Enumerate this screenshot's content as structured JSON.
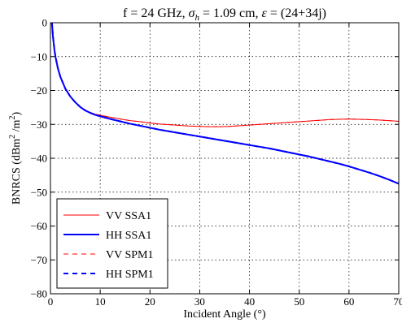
{
  "chart_data": {
    "type": "line",
    "title_parts": {
      "freq": "f = 24 GHz, ",
      "sigma": "σ",
      "sigma_sub": "h",
      "sigma_val": " = 1.09 cm, ",
      "eps": "ε",
      "eps_val": " = (24+34j)"
    },
    "xlabel": "Incident Angle (°)",
    "ylabel_parts": {
      "pre": "BNRCS (dBm",
      "sup1": "2",
      "mid": " /m",
      "sup2": "2",
      "post": ")"
    },
    "xlim": [
      0,
      70
    ],
    "ylim": [
      -80,
      0
    ],
    "xticks": [
      0,
      10,
      20,
      30,
      40,
      50,
      60,
      70
    ],
    "yticks": [
      0,
      -10,
      -20,
      -30,
      -40,
      -50,
      -60,
      -70,
      -80
    ],
    "grid": true,
    "legend_position": "lower-left",
    "series": [
      {
        "name": "VV SSA1",
        "color": "#ff0000",
        "style": "solid",
        "width": 1,
        "x": [
          0.3,
          0.5,
          0.8,
          1,
          1.5,
          2,
          3,
          4,
          5,
          6,
          7,
          8,
          9,
          10,
          12,
          14,
          16,
          18,
          20,
          22,
          24,
          26,
          28,
          30,
          32,
          34,
          36,
          38,
          40,
          42,
          44,
          46,
          48,
          50,
          52,
          54,
          56,
          58,
          60,
          62,
          64,
          66,
          68,
          70
        ],
        "y": [
          0,
          -4,
          -8,
          -10,
          -13.5,
          -16,
          -19.5,
          -21.8,
          -23.5,
          -24.8,
          -25.8,
          -26.5,
          -27,
          -27.3,
          -27.9,
          -28.4,
          -28.9,
          -29.2,
          -29.6,
          -29.9,
          -30.1,
          -30.3,
          -30.5,
          -30.6,
          -30.7,
          -30.7,
          -30.6,
          -30.4,
          -30.2,
          -30,
          -29.8,
          -29.6,
          -29.4,
          -29.2,
          -29,
          -28.8,
          -28.6,
          -28.5,
          -28.4,
          -28.5,
          -28.6,
          -28.7,
          -28.9,
          -29.1
        ]
      },
      {
        "name": "HH SSA1",
        "color": "#0000ff",
        "style": "solid",
        "width": 2,
        "x": [
          0.3,
          0.5,
          0.8,
          1,
          1.5,
          2,
          3,
          4,
          5,
          6,
          7,
          8,
          9,
          10,
          12,
          14,
          16,
          18,
          20,
          22,
          24,
          26,
          28,
          30,
          32,
          34,
          36,
          38,
          40,
          42,
          44,
          46,
          48,
          50,
          52,
          54,
          56,
          58,
          60,
          62,
          64,
          66,
          68,
          70
        ],
        "y": [
          0,
          -4,
          -8,
          -10,
          -13.5,
          -16,
          -19.5,
          -21.8,
          -23.5,
          -24.9,
          -25.9,
          -26.6,
          -27.2,
          -27.6,
          -28.4,
          -29.1,
          -29.8,
          -30.4,
          -31,
          -31.6,
          -32.1,
          -32.6,
          -33.1,
          -33.6,
          -34.1,
          -34.6,
          -35.1,
          -35.6,
          -36.1,
          -36.6,
          -37.1,
          -37.7,
          -38.3,
          -38.9,
          -39.5,
          -40.2,
          -40.9,
          -41.6,
          -42.4,
          -43.3,
          -44.2,
          -45.2,
          -46.3,
          -47.5
        ]
      },
      {
        "name": "VV SPM1",
        "color": "#ff0000",
        "style": "dashed",
        "width": 1,
        "x": [
          0.3,
          0.5,
          0.8,
          1,
          1.5,
          2,
          3,
          4,
          5,
          6,
          7,
          8,
          9,
          10,
          12,
          14,
          16,
          18,
          20,
          22,
          24,
          26,
          28,
          30,
          32,
          34,
          36,
          38,
          40,
          42,
          44,
          46,
          48,
          50,
          52,
          54,
          56,
          58,
          60,
          62,
          64,
          66,
          68,
          70
        ],
        "y": [
          0,
          -4,
          -8,
          -10,
          -13.5,
          -16,
          -19.5,
          -21.8,
          -23.5,
          -24.8,
          -25.8,
          -26.5,
          -27,
          -27.3,
          -27.9,
          -28.4,
          -28.9,
          -29.2,
          -29.6,
          -29.9,
          -30.1,
          -30.3,
          -30.5,
          -30.6,
          -30.7,
          -30.7,
          -30.6,
          -30.4,
          -30.2,
          -30,
          -29.8,
          -29.6,
          -29.4,
          -29.2,
          -29,
          -28.8,
          -28.6,
          -28.5,
          -28.4,
          -28.5,
          -28.6,
          -28.7,
          -28.9,
          -29.1
        ]
      },
      {
        "name": "HH SPM1",
        "color": "#0000ff",
        "style": "dashed",
        "width": 2,
        "x": [
          0.3,
          0.5,
          0.8,
          1,
          1.5,
          2,
          3,
          4,
          5,
          6,
          7,
          8,
          9,
          10,
          12,
          14,
          16,
          18,
          20,
          22,
          24,
          26,
          28,
          30,
          32,
          34,
          36,
          38,
          40,
          42,
          44,
          46,
          48,
          50,
          52,
          54,
          56,
          58,
          60,
          62,
          64,
          66,
          68,
          70
        ],
        "y": [
          0,
          -4,
          -8,
          -10,
          -13.5,
          -16,
          -19.5,
          -21.8,
          -23.5,
          -24.9,
          -25.9,
          -26.6,
          -27.2,
          -27.6,
          -28.4,
          -29.1,
          -29.8,
          -30.4,
          -31,
          -31.6,
          -32.1,
          -32.6,
          -33.1,
          -33.6,
          -34.1,
          -34.6,
          -35.1,
          -35.6,
          -36.1,
          -36.6,
          -37.1,
          -37.7,
          -38.3,
          -38.9,
          -39.5,
          -40.2,
          -40.9,
          -41.6,
          -42.4,
          -43.3,
          -44.2,
          -45.2,
          -46.3,
          -47.5
        ]
      }
    ]
  }
}
